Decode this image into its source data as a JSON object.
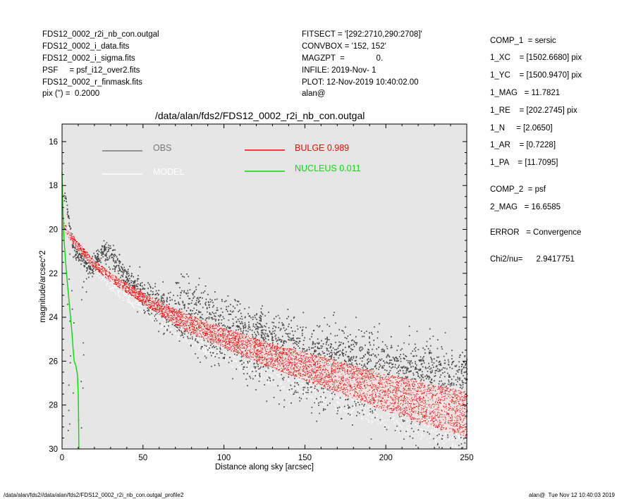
{
  "header_left": [
    "FDS12_0002_r2i_nb_con.outgal",
    "FDS12_0002_i_data.fits",
    "FDS12_0002_i_sigma.fits",
    "PSF     = psf_i12_over2.fits",
    "FDS12_0002_r_finmask.fits",
    "pix (\") =  0.2000"
  ],
  "header_mid": [
    "FITSECT = '[292:2710,290:2708]'",
    "CONVBOX = '152, 152'",
    "MAGZPT  =              0.",
    "INFILE: 2019-Nov- 1",
    "PLOT: 12-Nov-2019 10:40:02.00",
    "alan@"
  ],
  "params": {
    "comp1": "COMP_1  = sersic",
    "xc": "1_XC    = [1502.6680] pix",
    "yc": "1_YC    = [1500.9470] pix",
    "mag": "1_MAG   = 11.7821",
    "re": "1_RE    = [202.2745] pix",
    "n": "1_N     = [2.0650]",
    "ar": "1_AR    = [0.7228]",
    "pa": "1_PA    = [11.7095]",
    "comp2": "COMP_2  = psf",
    "mag2": "2_MAG   = 16.6585",
    "error": "ERROR   = Convergence",
    "chi2": "Chi2/nu=      2.9417751"
  },
  "footer_left": "/data/alan/fds2//data/alan/fds2/FDS12_0002_r2i_nb_con.outgal_profile2",
  "footer_right": "alan@  Tue Nov 12 10:40:03 2019",
  "chart_data": {
    "type": "scatter",
    "title": "/data/alan/fds2/FDS12_0002_r2i_nb_con.outgal",
    "xlabel": "Distance along sky [arcsec]",
    "ylabel": "magnitude/arcsec^2",
    "xlim": [
      0,
      250
    ],
    "ylim": [
      30,
      15.2
    ],
    "y_inverted": true,
    "x_ticks": [
      0,
      50,
      100,
      150,
      200,
      250
    ],
    "y_ticks": [
      16,
      18,
      20,
      22,
      24,
      26,
      28,
      30
    ],
    "grid": false,
    "background": "#e6e6e6",
    "legend": [
      {
        "label": "OBS",
        "color": "#777777"
      },
      {
        "label": "MODEL",
        "color": "#ffffff"
      },
      {
        "label": "BULGE  0.989",
        "color": "#ff0000"
      },
      {
        "label": "NUCLEUS  0.011",
        "color": "#00dd00"
      }
    ],
    "series": [
      {
        "name": "BULGE  0.989",
        "color": "#ff0000",
        "band_upper": [
          [
            1,
            19.7
          ],
          [
            5,
            20.1
          ],
          [
            10,
            20.6
          ],
          [
            20,
            21.4
          ],
          [
            30,
            22.0
          ],
          [
            50,
            22.9
          ],
          [
            75,
            23.8
          ],
          [
            100,
            24.5
          ],
          [
            125,
            25.1
          ],
          [
            150,
            25.6
          ],
          [
            175,
            26.1
          ],
          [
            200,
            26.6
          ],
          [
            225,
            27.0
          ],
          [
            250,
            27.4
          ]
        ],
        "band_lower": [
          [
            1,
            20.0
          ],
          [
            5,
            20.5
          ],
          [
            10,
            21.0
          ],
          [
            20,
            21.8
          ],
          [
            30,
            22.4
          ],
          [
            50,
            23.4
          ],
          [
            75,
            24.6
          ],
          [
            100,
            25.4
          ],
          [
            125,
            26.2
          ],
          [
            150,
            26.9
          ],
          [
            175,
            27.6
          ],
          [
            200,
            28.3
          ],
          [
            225,
            28.9
          ],
          [
            250,
            29.5
          ]
        ]
      },
      {
        "name": "NUCLEUS  0.011",
        "color": "#00dd00",
        "points": [
          [
            0,
            17.4
          ],
          [
            0.5,
            19.0
          ],
          [
            1,
            20.2
          ],
          [
            2,
            21.3
          ],
          [
            3,
            22.2
          ],
          [
            4,
            23.0
          ],
          [
            5,
            23.8
          ],
          [
            6,
            24.6
          ],
          [
            6.8,
            25.4
          ],
          [
            7.5,
            26.0
          ],
          [
            8.5,
            26.2
          ],
          [
            9.5,
            26.6
          ],
          [
            10,
            27.5
          ],
          [
            10.2,
            28.5
          ],
          [
            10.4,
            30.0
          ]
        ]
      },
      {
        "name": "OBS",
        "color": "#444444",
        "ridge": [
          [
            2,
            18.6
          ],
          [
            5,
            20.2
          ],
          [
            8,
            21.0
          ],
          [
            12,
            21.3
          ],
          [
            18,
            21.8
          ],
          [
            22,
            21.2
          ],
          [
            27,
            21.0
          ],
          [
            32,
            21.3
          ],
          [
            38,
            22.2
          ],
          [
            50,
            23.0
          ],
          [
            75,
            24.3
          ],
          [
            100,
            25.2
          ],
          [
            125,
            25.8
          ],
          [
            150,
            26.3
          ],
          [
            175,
            26.8
          ],
          [
            200,
            27.2
          ],
          [
            225,
            27.6
          ],
          [
            250,
            28.0
          ]
        ]
      },
      {
        "name": "MODEL",
        "color": "#ffffff",
        "ridge": [
          [
            2,
            19.8
          ],
          [
            10,
            20.8
          ],
          [
            30,
            22.3
          ],
          [
            50,
            23.2
          ],
          [
            75,
            24.3
          ],
          [
            100,
            25.1
          ],
          [
            125,
            25.8
          ],
          [
            150,
            26.4
          ],
          [
            175,
            26.9
          ],
          [
            200,
            27.4
          ],
          [
            225,
            27.8
          ],
          [
            250,
            28.2
          ]
        ]
      }
    ]
  }
}
